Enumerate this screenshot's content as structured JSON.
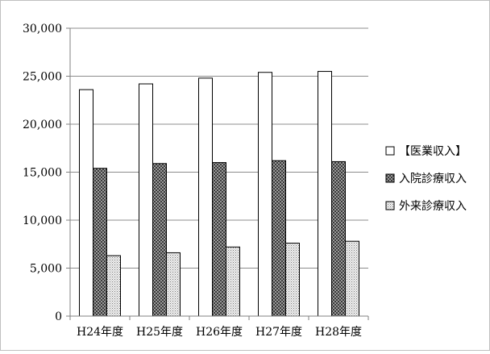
{
  "chart_data": {
    "type": "bar",
    "title": "",
    "xlabel": "",
    "ylabel": "",
    "categories": [
      "H24年度",
      "H25年度",
      "H26年度",
      "H27年度",
      "H28年度"
    ],
    "ylim": [
      0,
      30000
    ],
    "yticks": [
      0,
      5000,
      10000,
      15000,
      20000,
      25000,
      30000
    ],
    "ytick_labels": [
      "0",
      "5,000",
      "10,000",
      "15,000",
      "20,000",
      "25,000",
      "30,000"
    ],
    "grid": "horizontal",
    "legend_position": "right",
    "series": [
      {
        "name": "【医業収入】",
        "pattern": "white",
        "values": [
          23600,
          24200,
          24800,
          25400,
          25500
        ]
      },
      {
        "name": "入院診療収入",
        "pattern": "dark-checker",
        "values": [
          15400,
          15900,
          16000,
          16200,
          16100
        ]
      },
      {
        "name": "外来診療収入",
        "pattern": "light-dotted",
        "values": [
          6300,
          6600,
          7200,
          7600,
          7800
        ]
      }
    ]
  }
}
